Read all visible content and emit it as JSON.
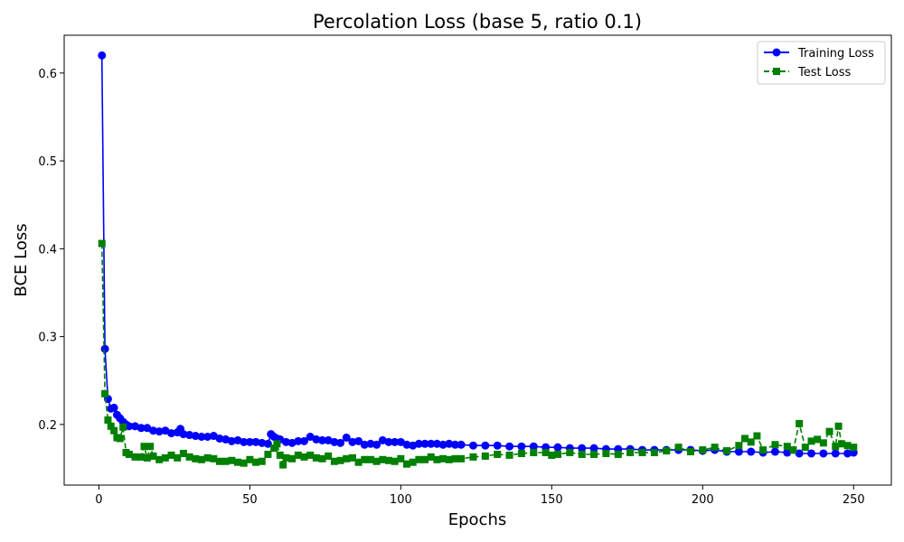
{
  "chart_data": {
    "type": "line",
    "title": "Percolation Loss (base 5, ratio 0.1)",
    "xlabel": "Epochs",
    "ylabel": "BCE Loss",
    "xlim": [
      -11.5,
      262.5
    ],
    "ylim": [
      0.131,
      0.643
    ],
    "xticks": [
      0,
      50,
      100,
      150,
      200,
      250
    ],
    "yticks": [
      0.2,
      0.3,
      0.4,
      0.5,
      0.6
    ],
    "grid": false,
    "legend_position": "top-right",
    "series": [
      {
        "name": "Training Loss",
        "color": "#0000ff",
        "marker": "circle",
        "line_style": "solid",
        "x": [
          1,
          2,
          3,
          4,
          5,
          6,
          7,
          8,
          9,
          10,
          12,
          14,
          16,
          18,
          20,
          22,
          24,
          26,
          27,
          28,
          30,
          32,
          34,
          36,
          38,
          40,
          42,
          44,
          46,
          48,
          50,
          52,
          54,
          56,
          57,
          58,
          59,
          60,
          62,
          64,
          66,
          68,
          70,
          72,
          74,
          76,
          78,
          80,
          82,
          84,
          86,
          88,
          90,
          92,
          94,
          96,
          98,
          100,
          102,
          104,
          106,
          108,
          110,
          112,
          114,
          116,
          118,
          120,
          124,
          128,
          132,
          136,
          140,
          144,
          148,
          152,
          156,
          160,
          164,
          168,
          172,
          176,
          180,
          184,
          188,
          192,
          196,
          200,
          204,
          208,
          212,
          216,
          220,
          224,
          228,
          232,
          236,
          240,
          244,
          248,
          250
        ],
        "y": [
          0.62,
          0.286,
          0.229,
          0.218,
          0.219,
          0.211,
          0.207,
          0.203,
          0.2,
          0.198,
          0.198,
          0.196,
          0.196,
          0.193,
          0.192,
          0.193,
          0.19,
          0.191,
          0.195,
          0.189,
          0.188,
          0.187,
          0.186,
          0.186,
          0.187,
          0.184,
          0.183,
          0.181,
          0.182,
          0.18,
          0.18,
          0.18,
          0.179,
          0.178,
          0.189,
          0.186,
          0.184,
          0.183,
          0.18,
          0.179,
          0.181,
          0.181,
          0.186,
          0.183,
          0.182,
          0.182,
          0.18,
          0.179,
          0.185,
          0.18,
          0.181,
          0.177,
          0.178,
          0.177,
          0.182,
          0.18,
          0.18,
          0.18,
          0.177,
          0.176,
          0.178,
          0.178,
          0.178,
          0.178,
          0.177,
          0.178,
          0.177,
          0.177,
          0.176,
          0.176,
          0.176,
          0.175,
          0.175,
          0.175,
          0.174,
          0.174,
          0.173,
          0.173,
          0.173,
          0.172,
          0.172,
          0.172,
          0.171,
          0.171,
          0.171,
          0.171,
          0.171,
          0.17,
          0.171,
          0.169,
          0.169,
          0.169,
          0.168,
          0.169,
          0.168,
          0.167,
          0.167,
          0.167,
          0.167,
          0.167,
          0.168
        ]
      },
      {
        "name": "Test Loss",
        "color": "#008000",
        "marker": "square",
        "line_style": "dashed",
        "x": [
          1,
          2,
          3,
          4,
          5,
          6,
          7,
          8,
          9,
          10,
          12,
          14,
          15,
          16,
          17,
          18,
          20,
          22,
          24,
          26,
          28,
          30,
          32,
          34,
          36,
          38,
          40,
          42,
          44,
          46,
          48,
          50,
          52,
          54,
          56,
          58,
          59,
          60,
          61,
          62,
          64,
          66,
          68,
          70,
          72,
          74,
          76,
          78,
          80,
          82,
          84,
          86,
          88,
          90,
          92,
          94,
          96,
          98,
          100,
          102,
          104,
          106,
          108,
          110,
          112,
          114,
          116,
          118,
          120,
          124,
          128,
          132,
          136,
          140,
          144,
          148,
          150,
          152,
          156,
          160,
          164,
          168,
          172,
          176,
          180,
          184,
          188,
          192,
          196,
          200,
          204,
          208,
          212,
          214,
          216,
          218,
          220,
          224,
          228,
          230,
          232,
          234,
          236,
          238,
          240,
          242,
          244,
          245,
          246,
          248,
          250
        ],
        "y": [
          0.406,
          0.235,
          0.205,
          0.198,
          0.193,
          0.185,
          0.184,
          0.197,
          0.168,
          0.166,
          0.163,
          0.163,
          0.175,
          0.162,
          0.175,
          0.164,
          0.16,
          0.162,
          0.165,
          0.162,
          0.167,
          0.163,
          0.161,
          0.16,
          0.162,
          0.161,
          0.158,
          0.158,
          0.159,
          0.157,
          0.156,
          0.16,
          0.157,
          0.158,
          0.166,
          0.173,
          0.178,
          0.165,
          0.154,
          0.162,
          0.161,
          0.165,
          0.163,
          0.165,
          0.162,
          0.161,
          0.164,
          0.158,
          0.159,
          0.161,
          0.162,
          0.157,
          0.16,
          0.16,
          0.158,
          0.16,
          0.159,
          0.158,
          0.161,
          0.155,
          0.157,
          0.16,
          0.16,
          0.163,
          0.16,
          0.161,
          0.16,
          0.161,
          0.161,
          0.163,
          0.164,
          0.166,
          0.165,
          0.167,
          0.168,
          0.168,
          0.165,
          0.166,
          0.168,
          0.166,
          0.166,
          0.167,
          0.166,
          0.168,
          0.168,
          0.168,
          0.17,
          0.174,
          0.169,
          0.171,
          0.174,
          0.17,
          0.176,
          0.184,
          0.18,
          0.187,
          0.171,
          0.177,
          0.175,
          0.171,
          0.201,
          0.174,
          0.181,
          0.183,
          0.179,
          0.192,
          0.175,
          0.198,
          0.178,
          0.176,
          0.174
        ]
      }
    ]
  }
}
